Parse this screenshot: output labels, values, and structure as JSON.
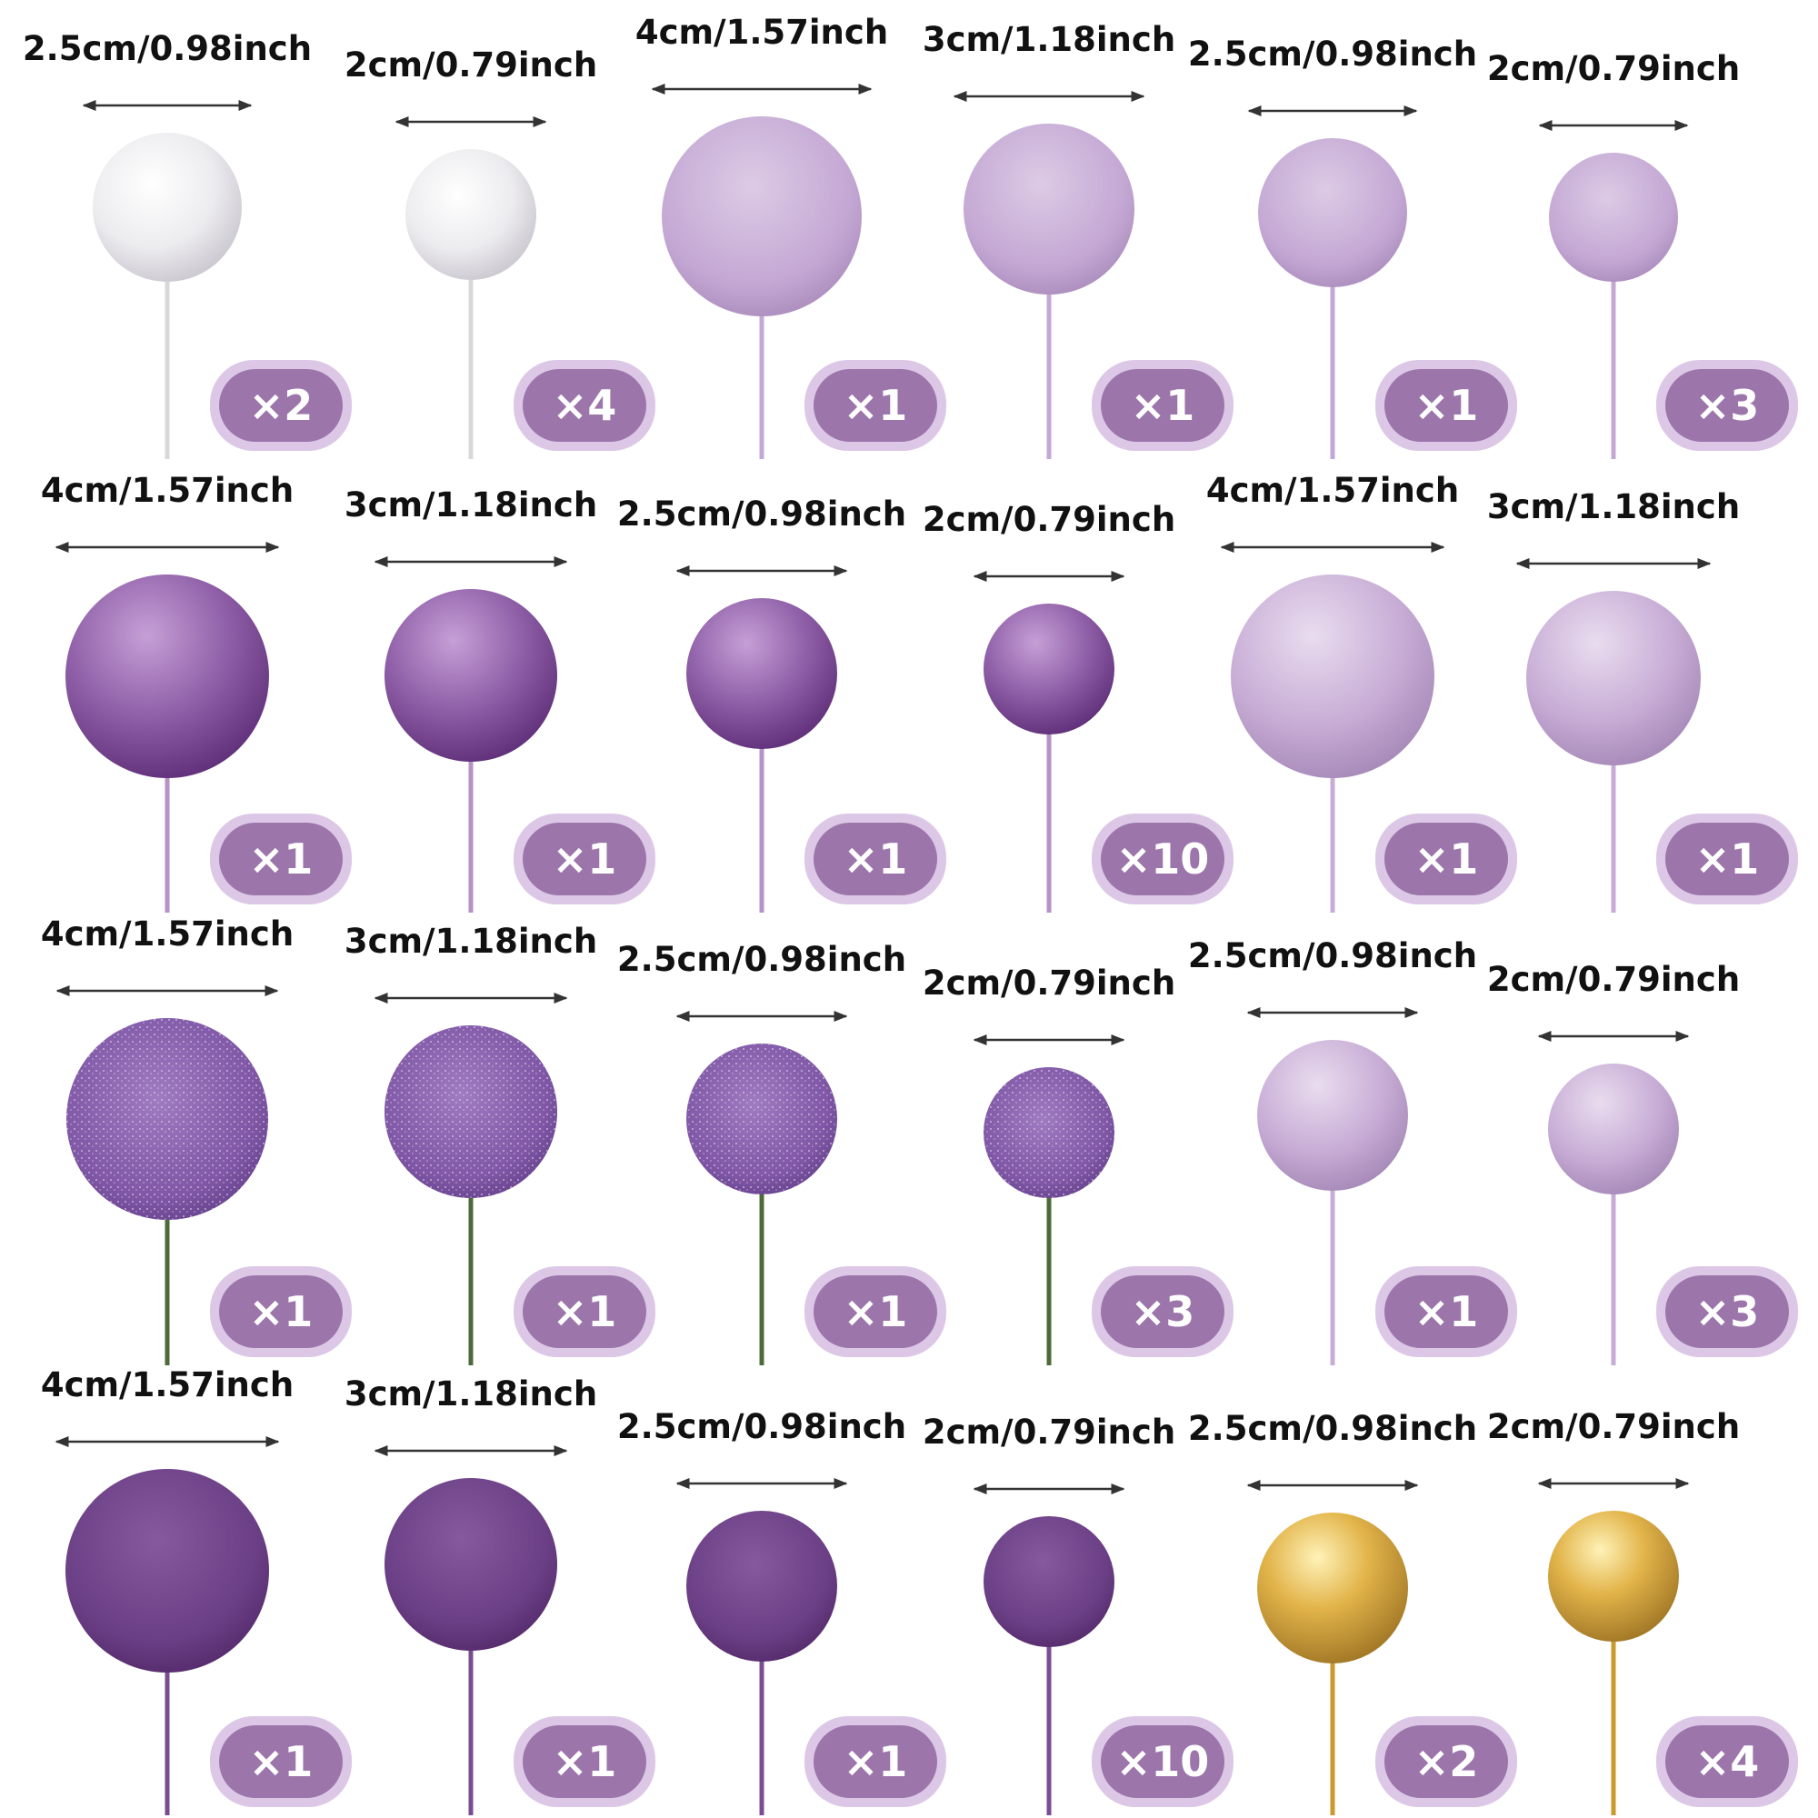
{
  "rows": [
    [
      {
        "size": "2.5cm/0.98inch",
        "count": "×2"
      },
      {
        "size": "2cm/0.79inch",
        "count": "×4"
      },
      {
        "size": "4cm/1.57inch",
        "count": "×1"
      },
      {
        "size": "3cm/1.18inch",
        "count": "×1"
      },
      {
        "size": "2.5cm/0.98inch",
        "count": "×1"
      },
      {
        "size": "2cm/0.79inch",
        "count": "×3"
      }
    ],
    [
      {
        "size": "4cm/1.57inch",
        "count": "×1"
      },
      {
        "size": "3cm/1.18inch",
        "count": "×1"
      },
      {
        "size": "2.5cm/0.98inch",
        "count": "×1"
      },
      {
        "size": "2cm/0.79inch",
        "count": "×10"
      },
      {
        "size": "4cm/1.57inch",
        "count": "×1"
      },
      {
        "size": "3cm/1.18inch",
        "count": "×1"
      }
    ],
    [
      {
        "size": "4cm/1.57inch",
        "count": "×1"
      },
      {
        "size": "3cm/1.18inch",
        "count": "×1"
      },
      {
        "size": "2.5cm/0.98inch",
        "count": "×1"
      },
      {
        "size": "2cm/0.79inch",
        "count": "×3"
      },
      {
        "size": "2.5cm/0.98inch",
        "count": "×1"
      },
      {
        "size": "2cm/0.79inch",
        "count": "×3"
      }
    ],
    [
      {
        "size": "4cm/1.57inch",
        "count": "×1"
      },
      {
        "size": "3cm/1.18inch",
        "count": "×1"
      },
      {
        "size": "2.5cm/0.98inch",
        "count": "×1"
      },
      {
        "size": "2cm/0.79inch",
        "count": "×10"
      },
      {
        "size": "2.5cm/0.98inch",
        "count": "×2"
      },
      {
        "size": "2cm/0.79inch",
        "count": "×4"
      }
    ]
  ]
}
